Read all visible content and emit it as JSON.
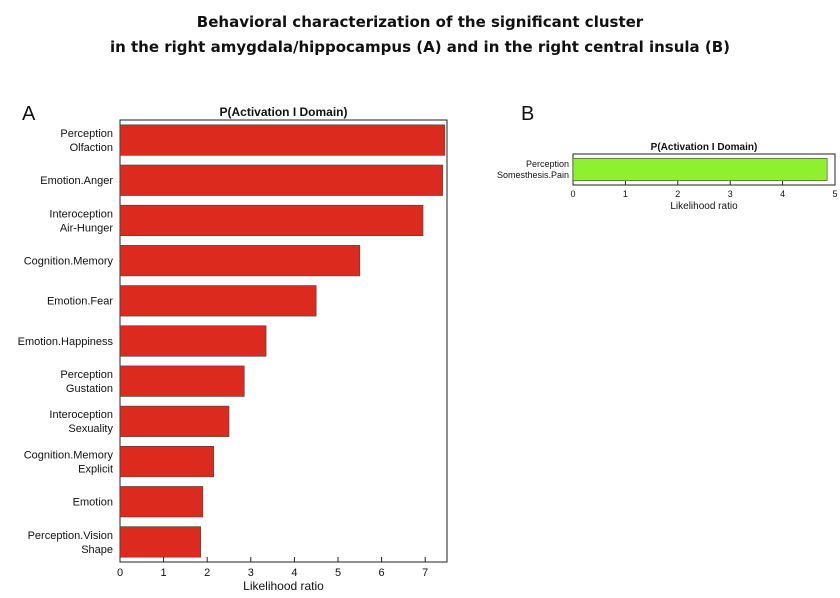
{
  "figure": {
    "title_line1": "Behavioral characterization of the significant cluster",
    "title_line2": "in the right amygdala/hippocampus (A) and in the right central insula (B)"
  },
  "chart_data": [
    {
      "type": "bar",
      "orientation": "horizontal",
      "panel_label": "A",
      "title": "P(Activation I Domain)",
      "xlabel": "Likelihood ratio",
      "ylabel": "",
      "xlim": [
        0,
        7.5
      ],
      "xticks": [
        0,
        1,
        2,
        3,
        4,
        5,
        6,
        7
      ],
      "categories": [
        [
          "Perception",
          "Olfaction"
        ],
        [
          "Emotion.Anger"
        ],
        [
          "Interoception",
          "Air-Hunger"
        ],
        [
          "Cognition.Memory"
        ],
        [
          "Emotion.Fear"
        ],
        [
          "Emotion.Happiness"
        ],
        [
          "Perception",
          "Gustation"
        ],
        [
          "Interoception",
          "Sexuality"
        ],
        [
          "Cognition.Memory",
          "Explicit"
        ],
        [
          "Emotion"
        ],
        [
          "Perception.Vision",
          "Shape"
        ]
      ],
      "values": [
        7.45,
        7.4,
        6.95,
        5.5,
        4.5,
        3.35,
        2.85,
        2.5,
        2.15,
        1.9,
        1.85
      ],
      "bar_color": "#dd2a1e",
      "grid": false
    },
    {
      "type": "bar",
      "orientation": "horizontal",
      "panel_label": "B",
      "title": "P(Activation I Domain)",
      "xlabel": "Likelihood ratio",
      "ylabel": "",
      "xlim": [
        0,
        5
      ],
      "xticks": [
        0,
        1,
        2,
        3,
        4,
        5
      ],
      "categories": [
        [
          "Perception",
          "Somesthesis.Pain"
        ]
      ],
      "values": [
        4.85
      ],
      "bar_color": "#8ef02e",
      "grid": false
    }
  ]
}
